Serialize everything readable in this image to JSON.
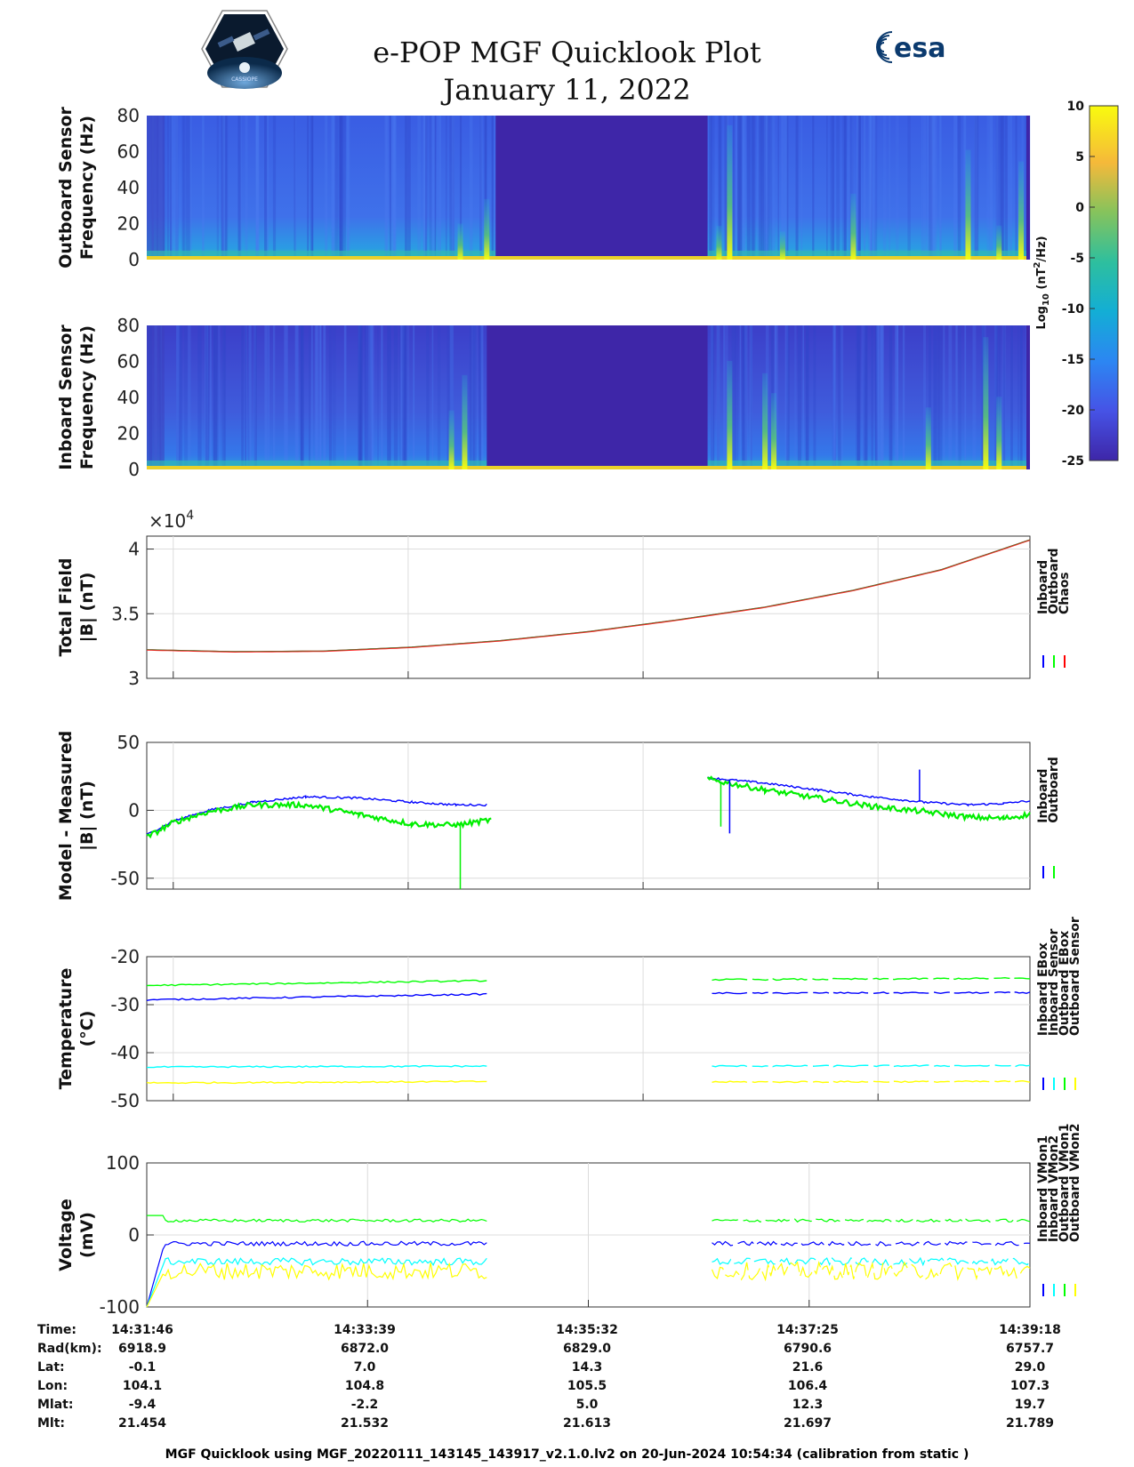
{
  "header": {
    "title_line1": "e-POP MGF Quicklook Plot",
    "title_line2": "January 11, 2022",
    "logo_left_text": "CASSIOPE",
    "logo_right_text": "esa"
  },
  "colorbar": {
    "ticks": [
      "10",
      "5",
      "0",
      "-5",
      "-10",
      "-15",
      "-20",
      "-25"
    ],
    "label_main": "Log",
    "label_sub": "10",
    "label_rest": " (nT",
    "label_sup": "2",
    "label_end": "/Hz)",
    "range": [
      -25,
      10
    ]
  },
  "chart_data": [
    {
      "id": "outboard-spectrogram",
      "type": "heatmap",
      "ylabel_line1": "Outboard Sensor",
      "ylabel_line2": "Frequency (Hz)",
      "yticks": [
        "80",
        "60",
        "40",
        "20",
        "0"
      ],
      "ylim": [
        0,
        80
      ],
      "data_gap": [
        0.395,
        0.635
      ],
      "spike_columns": [
        0.355,
        0.385,
        0.648,
        0.66,
        0.72,
        0.8,
        0.93,
        0.965,
        0.99
      ]
    },
    {
      "id": "inboard-spectrogram",
      "type": "heatmap",
      "ylabel_line1": "Inboard Sensor",
      "ylabel_line2": "Frequency (Hz)",
      "yticks": [
        "80",
        "60",
        "40",
        "20",
        "0"
      ],
      "ylim": [
        0,
        80
      ],
      "data_gap": [
        0.385,
        0.635
      ],
      "spike_columns": [
        0.345,
        0.36,
        0.66,
        0.7,
        0.71,
        0.885,
        0.95,
        0.965
      ]
    },
    {
      "id": "total-field",
      "type": "line",
      "ylabel_line1": "Total Field",
      "ylabel_line2": "|B| (nT)",
      "yticks": [
        "4",
        "3.5",
        "3"
      ],
      "ytick_values": [
        4,
        3.5,
        3
      ],
      "exponent_label": "×10",
      "exponent_sup": "4",
      "ylim": [
        3,
        4.1
      ],
      "legend": [
        "Inboard",
        "Outboard",
        "Chaos"
      ],
      "legend_colors": [
        "#0000ff",
        "#00ff00",
        "#ff0000"
      ],
      "series": [
        {
          "name": "Chaos",
          "x": [
            0,
            0.1,
            0.2,
            0.3,
            0.4,
            0.5,
            0.6,
            0.7,
            0.8,
            0.9,
            1.0
          ],
          "values": [
            3.22,
            3.205,
            3.21,
            3.24,
            3.29,
            3.36,
            3.45,
            3.55,
            3.68,
            3.84,
            4.07
          ]
        }
      ]
    },
    {
      "id": "model-minus-measured",
      "type": "line",
      "ylabel_line1": "Model - Measured",
      "ylabel_line2": "|B| (nT)",
      "yticks": [
        "50",
        "0",
        "-50"
      ],
      "ytick_values": [
        50,
        0,
        -50
      ],
      "ylim": [
        -58,
        50
      ],
      "legend": [
        "Inboard",
        "Outboard"
      ],
      "legend_colors": [
        "#0000ff",
        "#00ff00"
      ],
      "series": [
        {
          "name": "Inboard",
          "segments": [
            {
              "x": [
                0,
                0.03,
                0.07,
                0.12,
                0.18,
                0.24,
                0.3,
                0.35,
                0.385
              ],
              "values": [
                -18,
                -8,
                0,
                6,
                10,
                9,
                6,
                4,
                4
              ]
            },
            {
              "x": [
                0.635,
                0.7,
                0.76,
                0.82,
                0.88,
                0.93,
                0.97,
                1.0
              ],
              "values": [
                24,
                20,
                15,
                10,
                6,
                4,
                5,
                7
              ]
            }
          ]
        },
        {
          "name": "Outboard",
          "segments": [
            {
              "x": [
                0,
                0.03,
                0.07,
                0.12,
                0.18,
                0.24,
                0.3,
                0.35,
                0.39
              ],
              "values": [
                -20,
                -9,
                -1,
                4,
                4,
                -3,
                -10,
                -11,
                -7
              ]
            },
            {
              "x": [
                0.635,
                0.7,
                0.76,
                0.82,
                0.88,
                0.93,
                0.97,
                1.0
              ],
              "values": [
                23,
                15,
                9,
                3,
                -1,
                -5,
                -6,
                -3
              ]
            }
          ]
        }
      ],
      "spikes": [
        {
          "series": "Outboard",
          "x": 0.355,
          "to": -58
        },
        {
          "series": "Inboard",
          "x": 0.66,
          "to": -17
        },
        {
          "series": "Inboard",
          "x": 0.875,
          "to": 30
        },
        {
          "series": "Outboard",
          "x": 0.65,
          "to": -12
        }
      ]
    },
    {
      "id": "temperature",
      "type": "line",
      "ylabel_line1": "Temperature",
      "ylabel_line2": "(°C)",
      "yticks": [
        "-20",
        "-30",
        "-40",
        "-50"
      ],
      "ytick_values": [
        -20,
        -30,
        -40,
        -50
      ],
      "ylim": [
        -50,
        -20
      ],
      "legend": [
        "Inboard EBox",
        "Inboard Sensor",
        "Outboard EBox",
        "Outboard Sensor"
      ],
      "legend_colors": [
        "#0000ff",
        "#00ffff",
        "#00ff00",
        "#ffff00"
      ],
      "series": [
        {
          "name": "Inboard EBox",
          "color": "#0000ff",
          "segments": [
            {
              "x": [
                0,
                0.385
              ],
              "values": [
                -29,
                -27.8
              ]
            },
            {
              "x": [
                0.64,
                1.0
              ],
              "values": [
                -27.6,
                -27.5
              ]
            }
          ]
        },
        {
          "name": "Inboard Sensor",
          "color": "#00ffff",
          "segments": [
            {
              "x": [
                0,
                0.385
              ],
              "values": [
                -43,
                -42.8
              ]
            },
            {
              "x": [
                0.64,
                1.0
              ],
              "values": [
                -42.8,
                -42.7
              ]
            }
          ]
        },
        {
          "name": "Outboard EBox",
          "color": "#00ff00",
          "segments": [
            {
              "x": [
                0,
                0.385
              ],
              "values": [
                -26,
                -25
              ]
            },
            {
              "x": [
                0.64,
                1.0
              ],
              "values": [
                -24.8,
                -24.5
              ]
            }
          ]
        },
        {
          "name": "Outboard Sensor",
          "color": "#ffff00",
          "segments": [
            {
              "x": [
                0,
                0.385
              ],
              "values": [
                -46.3,
                -46
              ]
            },
            {
              "x": [
                0.64,
                1.0
              ],
              "values": [
                -46.1,
                -46
              ]
            }
          ]
        }
      ]
    },
    {
      "id": "voltage",
      "type": "line",
      "ylabel_line1": "Voltage",
      "ylabel_line2": "(mV)",
      "yticks": [
        "100",
        "0",
        "-100"
      ],
      "ytick_values": [
        100,
        0,
        -100
      ],
      "ylim": [
        -100,
        100
      ],
      "legend": [
        "Inboard VMon1",
        "Inboard VMon2",
        "Outboard VMon1",
        "Outboard VMon2"
      ],
      "legend_colors": [
        "#0000ff",
        "#00ffff",
        "#00ff00",
        "#ffff00"
      ],
      "series": [
        {
          "name": "Inboard VMon1",
          "color": "#0000ff",
          "level": -12,
          "noise": 3,
          "segments": [
            [
              0,
              0.385
            ],
            [
              0.64,
              1.0
            ]
          ]
        },
        {
          "name": "Inboard VMon2",
          "color": "#00ffff",
          "level": -37,
          "noise": 5,
          "segments": [
            [
              0,
              0.385
            ],
            [
              0.64,
              1.0
            ]
          ]
        },
        {
          "name": "Outboard VMon1",
          "color": "#00ff00",
          "level": 20,
          "noise": 2,
          "segments": [
            [
              0,
              0.385
            ],
            [
              0.64,
              1.0
            ]
          ]
        },
        {
          "name": "Outboard VMon2",
          "color": "#ffff00",
          "level": -50,
          "noise": 12,
          "segments": [
            [
              0,
              0.385
            ],
            [
              0.64,
              1.0
            ]
          ]
        }
      ]
    }
  ],
  "info_table": {
    "row_labels": [
      "Time:",
      "Rad(km):",
      "Lat:",
      "Lon:",
      "Mlat:",
      "Mlt:"
    ],
    "columns": [
      [
        "14:31:46",
        "6918.9",
        "-0.1",
        "104.1",
        "-9.4",
        "21.454"
      ],
      [
        "14:33:39",
        "6872.0",
        "7.0",
        "104.8",
        "-2.2",
        "21.532"
      ],
      [
        "14:35:32",
        "6829.0",
        "14.3",
        "105.5",
        "5.0",
        "21.613"
      ],
      [
        "14:37:25",
        "6790.6",
        "21.6",
        "106.4",
        "12.3",
        "21.697"
      ],
      [
        "14:39:18",
        "6757.7",
        "29.0",
        "107.3",
        "19.7",
        "21.789"
      ]
    ]
  },
  "footer": {
    "text": "MGF Quicklook using MGF_20220111_143145_143917_v2.1.0.lv2 on 20-Jun-2024 10:54:34 (calibration from static )"
  }
}
